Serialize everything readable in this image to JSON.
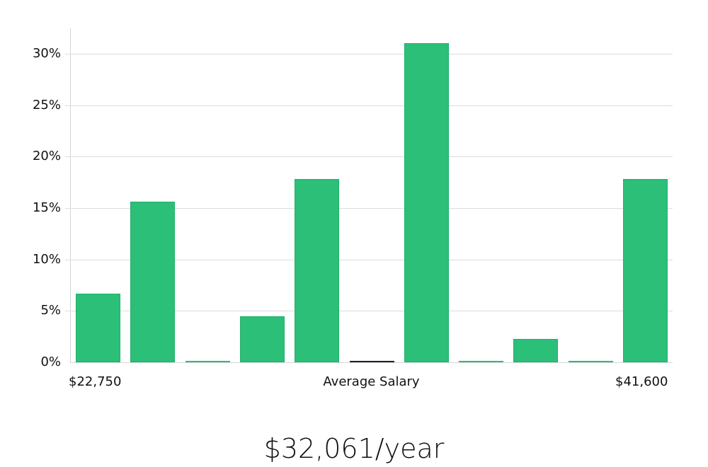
{
  "chart_data": {
    "type": "bar",
    "title": "",
    "xlabel": "Average Salary",
    "ylabel": "",
    "ylim": [
      0,
      32
    ],
    "yticks": [
      "0%",
      "5%",
      "10%",
      "15%",
      "20%",
      "25%",
      "30%"
    ],
    "x_range_labels": {
      "min": "$22,750",
      "max": "$41,600"
    },
    "grid": true,
    "legend": null,
    "bar_color": "#2bbf77",
    "highlight_bar_color": "#1b1b3a",
    "highlight_bar_index": 5,
    "categories": [
      "bin1",
      "bin2",
      "bin3",
      "bin4",
      "bin5",
      "bin6",
      "bin7",
      "bin8",
      "bin9",
      "bin10",
      "bin11"
    ],
    "values": [
      6.7,
      15.6,
      0,
      4.5,
      17.8,
      0,
      31.0,
      0,
      2.3,
      0,
      17.8
    ],
    "units": "%"
  },
  "summary": {
    "average_salary": "$32,061/year"
  }
}
